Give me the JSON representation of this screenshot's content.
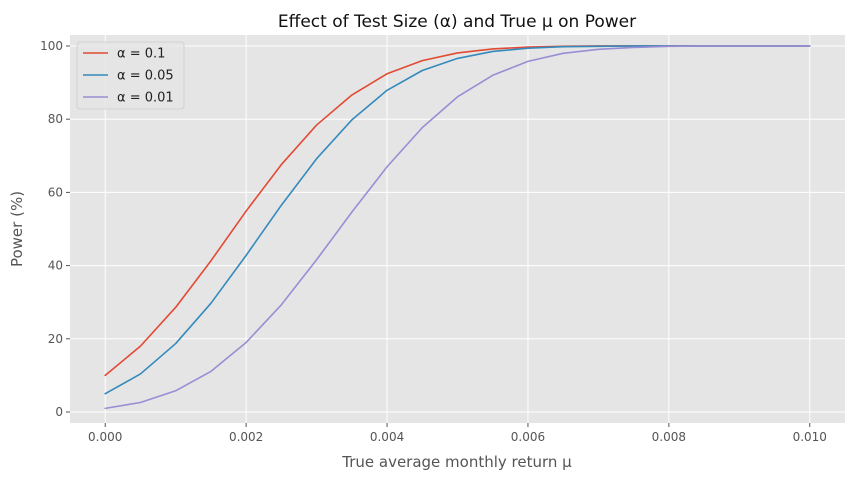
{
  "chart_data": {
    "type": "line",
    "title": "Effect of Test Size (α) and True μ on Power",
    "xlabel": "True average monthly return μ",
    "ylabel": "Power (%)",
    "xlim": [
      -0.0005,
      0.0105
    ],
    "ylim": [
      -3,
      103
    ],
    "x_ticks": [
      0.0,
      0.002,
      0.004,
      0.006,
      0.008,
      0.01
    ],
    "x_tick_labels": [
      "0.000",
      "0.002",
      "0.004",
      "0.006",
      "0.008",
      "0.010"
    ],
    "y_ticks": [
      0,
      20,
      40,
      60,
      80,
      100
    ],
    "y_tick_labels": [
      "0",
      "20",
      "40",
      "60",
      "80",
      "100"
    ],
    "grid": true,
    "legend_position": "top-left",
    "x": [
      0.0,
      0.0005,
      0.001,
      0.0015,
      0.002,
      0.0025,
      0.003,
      0.0035,
      0.004,
      0.0045,
      0.005,
      0.0055,
      0.006,
      0.0065,
      0.007,
      0.0075,
      0.008,
      0.0085,
      0.009,
      0.0095,
      0.01
    ],
    "series": [
      {
        "name": "α = 0.1",
        "color": "#E24A33",
        "values": [
          10.0,
          18.0,
          28.6,
          41.3,
          54.9,
          67.6,
          78.4,
          86.6,
          92.4,
          96.0,
          98.1,
          99.2,
          99.7,
          99.9,
          100.0,
          100.0,
          100.0,
          100.0,
          100.0,
          100.0,
          100.0
        ]
      },
      {
        "name": "α = 0.05",
        "color": "#348ABD",
        "values": [
          5.0,
          10.4,
          18.7,
          29.7,
          42.8,
          56.5,
          69.2,
          79.8,
          87.9,
          93.3,
          96.6,
          98.5,
          99.4,
          99.8,
          99.9,
          100.0,
          100.0,
          100.0,
          100.0,
          100.0,
          100.0
        ]
      },
      {
        "name": "α = 0.01",
        "color": "#988ED5",
        "values": [
          1.0,
          2.6,
          5.8,
          11.1,
          19.0,
          29.3,
          41.6,
          54.6,
          67.0,
          77.7,
          86.1,
          92.0,
          95.8,
          98.0,
          99.1,
          99.6,
          99.9,
          100.0,
          100.0,
          100.0,
          100.0
        ]
      }
    ]
  }
}
